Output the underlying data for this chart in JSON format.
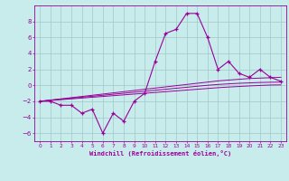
{
  "xlabel": "Windchill (Refroidissement éolien,°C)",
  "background_color": "#c8ecec",
  "grid_color": "#a0c8c8",
  "line_color": "#990099",
  "x_data": [
    0,
    1,
    2,
    3,
    4,
    5,
    6,
    7,
    8,
    9,
    10,
    11,
    12,
    13,
    14,
    15,
    16,
    17,
    18,
    19,
    20,
    21,
    22,
    23
  ],
  "y_main": [
    -2,
    -2,
    -2.5,
    -2.5,
    -3.5,
    -3,
    -6,
    -3.5,
    -4.5,
    -2,
    -1,
    3,
    6.5,
    7,
    9,
    9,
    6,
    2,
    3,
    1.5,
    1,
    2,
    1,
    0.5
  ],
  "y_line1": [
    -2.0,
    -1.85,
    -1.7,
    -1.55,
    -1.4,
    -1.25,
    -1.1,
    -0.95,
    -0.8,
    -0.65,
    -0.5,
    -0.35,
    -0.2,
    -0.05,
    0.1,
    0.25,
    0.4,
    0.55,
    0.65,
    0.75,
    0.85,
    0.9,
    0.95,
    1.0
  ],
  "y_line2": [
    -2.0,
    -1.9,
    -1.8,
    -1.7,
    -1.6,
    -1.5,
    -1.4,
    -1.3,
    -1.2,
    -1.1,
    -1.0,
    -0.9,
    -0.8,
    -0.7,
    -0.6,
    -0.5,
    -0.4,
    -0.3,
    -0.22,
    -0.15,
    -0.08,
    -0.02,
    0.03,
    0.05
  ],
  "y_line3": [
    -2.0,
    -1.87,
    -1.75,
    -1.62,
    -1.5,
    -1.37,
    -1.25,
    -1.12,
    -1.0,
    -0.87,
    -0.75,
    -0.62,
    -0.5,
    -0.37,
    -0.25,
    -0.12,
    0.0,
    0.1,
    0.18,
    0.25,
    0.3,
    0.35,
    0.38,
    0.4
  ],
  "ylim": [
    -7,
    10
  ],
  "xlim": [
    -0.5,
    23.5
  ],
  "yticks": [
    -6,
    -4,
    -2,
    0,
    2,
    4,
    6,
    8
  ],
  "xticks": [
    0,
    1,
    2,
    3,
    4,
    5,
    6,
    7,
    8,
    9,
    10,
    11,
    12,
    13,
    14,
    15,
    16,
    17,
    18,
    19,
    20,
    21,
    22,
    23
  ],
  "figsize": [
    3.2,
    2.0
  ],
  "dpi": 100
}
